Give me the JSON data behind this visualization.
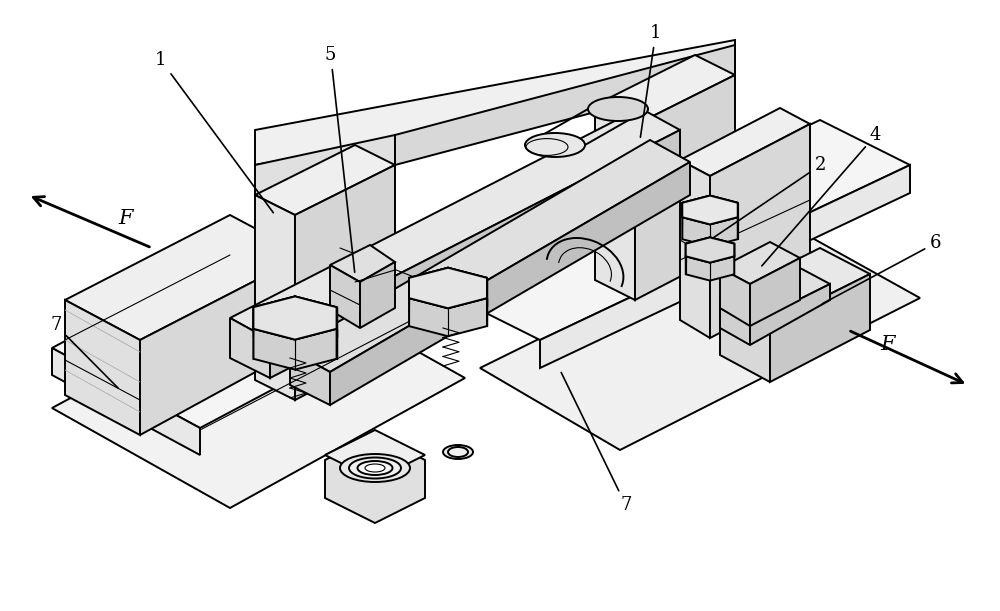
{
  "fig_width": 10.0,
  "fig_height": 6.11,
  "bg_color": "#ffffff",
  "lc": "#000000",
  "lw": 1.4,
  "lw_thin": 0.8,
  "lw_thick": 1.8,
  "gray_light": "#e8e8e8",
  "gray_mid": "#d0d0d0",
  "gray_dark": "#b0b0b0",
  "white": "#ffffff",
  "annotation_fontsize": 13,
  "F_fontsize": 15
}
